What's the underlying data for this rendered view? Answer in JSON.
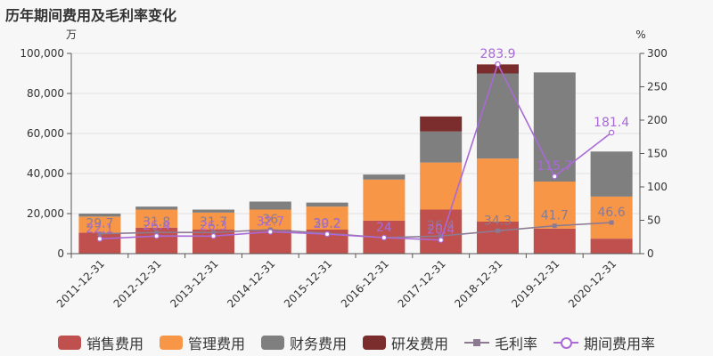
{
  "title": "历年期间费用及毛利率变化",
  "left_unit": "万",
  "right_unit": "%",
  "colors": {
    "sales": "#c0504d",
    "mgmt": "#f79646",
    "fin": "#7f7f7f",
    "rnd": "#7b2c2c",
    "gross": "#8c7a93",
    "period": "#a96ad6",
    "axis": "#555555",
    "grid": "#e0e0e0"
  },
  "legend": [
    {
      "key": "sales",
      "label": "销售费用",
      "kind": "bar"
    },
    {
      "key": "mgmt",
      "label": "管理费用",
      "kind": "bar"
    },
    {
      "key": "fin",
      "label": "财务费用",
      "kind": "bar"
    },
    {
      "key": "rnd",
      "label": "研发费用",
      "kind": "bar"
    },
    {
      "key": "gross",
      "label": "毛利率",
      "kind": "line-square"
    },
    {
      "key": "period",
      "label": "期间费用率",
      "kind": "line-circle"
    }
  ],
  "chart_data": {
    "type": "bar",
    "stacked": true,
    "categories": [
      "2011-12-31",
      "2012-12-31",
      "2013-12-31",
      "2014-12-31",
      "2015-12-31",
      "2016-12-31",
      "2017-12-31",
      "2018-12-31",
      "2019-12-31",
      "2020-12-31"
    ],
    "left_axis": {
      "min": 0,
      "max": 100000,
      "ticks": [
        0,
        20000,
        40000,
        60000,
        80000,
        100000
      ],
      "tick_labels": [
        "0",
        "20,000",
        "40,000",
        "60,000",
        "80,000",
        "100,000"
      ]
    },
    "right_axis": {
      "min": 0,
      "max": 300,
      "ticks": [
        0,
        50,
        100,
        150,
        200,
        250,
        300
      ],
      "tick_labels": [
        "0",
        "50",
        "100",
        "150",
        "200",
        "250",
        "300"
      ]
    },
    "series": [
      {
        "key": "sales",
        "name": "销售费用",
        "values": [
          10500,
          13000,
          12000,
          12000,
          12000,
          16500,
          22000,
          16000,
          12500,
          7500
        ],
        "axis": "left"
      },
      {
        "key": "mgmt",
        "name": "管理费用",
        "values": [
          8000,
          9000,
          8500,
          10000,
          11500,
          20500,
          23500,
          31500,
          23500,
          21000
        ],
        "axis": "left"
      },
      {
        "key": "fin",
        "name": "财务费用",
        "values": [
          1500,
          1500,
          1500,
          4000,
          2000,
          2500,
          15500,
          42500,
          54500,
          22500
        ],
        "axis": "left"
      },
      {
        "key": "rnd",
        "name": "研发费用",
        "values": [
          0,
          0,
          0,
          0,
          0,
          0,
          7500,
          4500,
          0,
          0
        ],
        "axis": "left"
      }
    ],
    "lines": [
      {
        "key": "gross",
        "name": "毛利率",
        "axis": "right",
        "marker": "square",
        "values": [
          29.7,
          31.8,
          31.7,
          36.0,
          30.2,
          24.0,
          26.4,
          34.3,
          41.7,
          46.6
        ],
        "labels": [
          "29.7",
          "31.8",
          "31.7",
          "36",
          "30.2",
          "24",
          "26.4",
          "34.3",
          "41.7",
          "46.6"
        ]
      },
      {
        "key": "period",
        "name": "期间费用率",
        "axis": "right",
        "marker": "circle",
        "values": [
          22.1,
          26.4,
          26.3,
          32.7,
          29.2,
          24.0,
          20.4,
          283.9,
          115.7,
          181.4
        ],
        "labels": [
          "22.1",
          "26.4",
          "26.3",
          "32.7",
          "29.2",
          "24",
          "20.4",
          "283.9",
          "115.7",
          "181.4"
        ]
      }
    ]
  }
}
